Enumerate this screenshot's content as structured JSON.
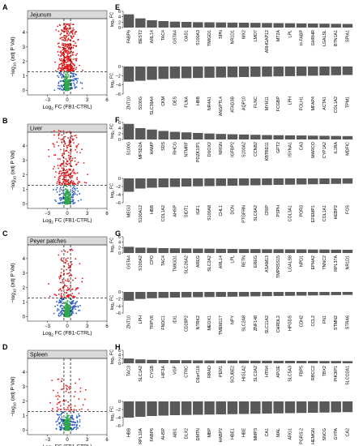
{
  "chart_data": [
    {
      "panel": "A",
      "type": "scatter",
      "title": "Jejunum",
      "xlabel": "Log2 FC (FB1-CTRL)",
      "ylabel": "−log10 (adj P Val)",
      "xlim": [
        -6,
        6
      ],
      "ylim": [
        -0.3,
        5.5
      ],
      "xticks": [
        -3,
        0,
        3,
        6
      ],
      "yticks": [
        0,
        1,
        2,
        3,
        4,
        5
      ],
      "vlines": [
        -0.5,
        0.5
      ],
      "hline": 1.3,
      "colors": {
        "up": "#e41a1c",
        "ns": "#2fa84f",
        "fc_only": "#2b5ec7"
      },
      "sig_spread": 0.55,
      "max_y": 4.6,
      "n_points": {
        "sig": 380,
        "ns": 260,
        "fc": 80
      }
    },
    {
      "panel": "B",
      "type": "scatter",
      "title": "Liver",
      "xlabel": "Log2 FC (FB1-CTRL)",
      "ylabel": "−log10 (adj P Val)",
      "xlim": [
        -6,
        6
      ],
      "ylim": [
        -0.3,
        5.5
      ],
      "xticks": [
        -3,
        0,
        3,
        6
      ],
      "yticks": [
        0,
        1,
        2,
        3,
        4,
        5
      ],
      "vlines": [
        -0.5,
        0.5
      ],
      "hline": 1.3,
      "colors": {
        "up": "#e41a1c",
        "ns": "#2fa84f",
        "fc_only": "#2b5ec7"
      },
      "sig_spread": 0.8,
      "max_y": 5.1,
      "n_points": {
        "sig": 260,
        "ns": 240,
        "fc": 70
      }
    },
    {
      "panel": "C",
      "type": "scatter",
      "title": "Peyer patches",
      "xlabel": "Log2 FC (FB1-CTRL)",
      "ylabel": "−log10 (adj P Val)",
      "xlim": [
        -6,
        6
      ],
      "ylim": [
        -0.3,
        5.5
      ],
      "xticks": [
        -3,
        0,
        3,
        6
      ],
      "yticks": [
        0,
        1,
        2,
        3,
        4,
        5
      ],
      "vlines": [
        -0.5,
        0.5
      ],
      "hline": 1.3,
      "colors": {
        "up": "#e41a1c",
        "ns": "#2fa84f",
        "fc_only": "#2b5ec7"
      },
      "sig_spread": 0.75,
      "max_y": 4.7,
      "n_points": {
        "sig": 120,
        "ns": 300,
        "fc": 90
      }
    },
    {
      "panel": "D",
      "type": "scatter",
      "title": "Spleen",
      "xlabel": "Log2 FC (FB1-CTRL)",
      "ylabel": "−log10 (adj P Val)",
      "xlim": [
        -6,
        6
      ],
      "ylim": [
        -0.3,
        5.5
      ],
      "xticks": [
        -3,
        0,
        3,
        6
      ],
      "yticks": [
        0,
        1,
        2,
        3,
        4,
        5
      ],
      "vlines": [
        -0.5,
        0.5
      ],
      "hline": 1.3,
      "colors": {
        "up": "#e41a1c",
        "ns": "#2fa84f",
        "fc_only": "#2b5ec7"
      },
      "sig_spread": 0.9,
      "max_y": 3.6,
      "n_points": {
        "sig": 70,
        "ns": 300,
        "fc": 90
      }
    },
    {
      "panel": "E",
      "type": "bar",
      "ylabel": "log2 FC",
      "up": {
        "categories": [
          "FABP6",
          "BEST2",
          "ARL14",
          "TAC4",
          "GSTA4",
          "OAS1",
          "S100A3",
          "TMIGD1",
          "SPN",
          "NR1D1",
          "MX2",
          "LMO7",
          "ARHGAP12",
          "MT2A",
          "LPL",
          "H-FABP",
          "GHRHR",
          "LGALSL",
          "BTN1A1",
          "SPIA1"
        ],
        "values": [
          4.9,
          3.4,
          2.7,
          2.4,
          2.2,
          2.1,
          2.0,
          1.95,
          1.9,
          1.85,
          1.8,
          1.75,
          1.7,
          1.65,
          1.6,
          1.55,
          1.5,
          1.45,
          1.4,
          1.35
        ],
        "ylim": [
          0,
          6
        ],
        "yticks": [
          0,
          2,
          4,
          6
        ]
      },
      "down": {
        "categories": [
          "ZNT10",
          "S100G",
          "SLC39A4",
          "CKM",
          "DES",
          "FLNA",
          "HBB",
          "NR4A1",
          "ANGPTL4",
          "ATAD3B",
          "AQP10",
          "FLNC",
          "MYH11",
          "FCGBP",
          "LPH",
          "FOLH1",
          "MFAP4",
          "ACTA1",
          "COL1A2",
          "TPM1"
        ],
        "values": [
          -3.3,
          -3.1,
          -2.9,
          -2.7,
          -2.6,
          -2.55,
          -2.5,
          -2.45,
          -2.4,
          -2.35,
          -2.3,
          -2.25,
          -2.2,
          -2.15,
          -2.1,
          -2.05,
          -2.0,
          -1.95,
          -1.9,
          -1.85
        ],
        "ylim": [
          -6,
          0
        ],
        "yticks": [
          0,
          -2,
          -4,
          -6
        ]
      }
    },
    {
      "panel": "F",
      "type": "bar",
      "ylabel": "log2 FC",
      "up": {
        "categories": [
          "S100G",
          "MFSD2A",
          "HAMP",
          "SDS",
          "RHCG",
          "NTMRF",
          "PDZK1IP1",
          "DUOX2",
          "NRGN",
          "IGFBP2",
          "S100A2",
          "CCNB2",
          "KBTBD11",
          "GPT2",
          "ISYNA1",
          "CA3",
          "MARCO",
          "CYP1A2",
          "IL1RA",
          "MDFIC"
        ],
        "values": [
          5.5,
          4.0,
          3.5,
          3.0,
          2.7,
          2.5,
          2.3,
          2.1,
          1.95,
          1.85,
          1.75,
          1.65,
          1.55,
          1.5,
          1.45,
          1.4,
          1.35,
          1.3,
          1.25,
          1.2
        ],
        "ylim": [
          0,
          6
        ],
        "yticks": [
          0,
          2,
          4,
          6
        ]
      },
      "down": {
        "categories": [
          "MEG3",
          "S100A12",
          "HBB",
          "COL1A2",
          "AHSP",
          "SIDT1",
          "IGF1",
          "S100A8",
          "CHL1",
          "DCN",
          "PTGFRN",
          "SLC6A2",
          "CRIP",
          "PSPH",
          "COL3A1",
          "POR3",
          "EFEMP1",
          "COL1A1",
          "HEBP2",
          "FOS"
        ],
        "values": [
          -3.3,
          -2.5,
          -2.3,
          -2.2,
          -2.1,
          -2.0,
          -1.95,
          -1.9,
          -1.85,
          -1.8,
          -1.75,
          -1.7,
          -1.65,
          -1.6,
          -1.55,
          -1.5,
          -1.45,
          -1.4,
          -1.35,
          -1.3
        ],
        "ylim": [
          -6,
          0
        ],
        "yticks": [
          0,
          -2,
          -4,
          -6
        ]
      }
    },
    {
      "panel": "G",
      "type": "bar",
      "ylabel": "log2 FC",
      "up": {
        "categories": [
          "GSTA4",
          "S100A2",
          "CPO",
          "TAC4",
          "TMIGD1",
          "SLC26A2",
          "AREG",
          "SLC2A2",
          "ARL14",
          "LPL",
          "RETN",
          "EREG",
          "ASAM13",
          "TMPRSS15",
          "LGALS8",
          "NPD1",
          "EPHA2",
          "TNNC2",
          "RPL37A",
          "NR1D1"
        ],
        "values": [
          2.3,
          2.0,
          1.9,
          1.8,
          1.75,
          1.7,
          1.65,
          1.6,
          1.55,
          1.5,
          1.45,
          1.45,
          1.4,
          1.4,
          1.35,
          1.35,
          1.3,
          1.3,
          1.25,
          1.2
        ],
        "ylim": [
          0,
          6
        ],
        "yticks": [
          0,
          2,
          4,
          6
        ]
      },
      "down": {
        "categories": [
          "ZNT10",
          "LPH",
          "TRPV6",
          "FNDC1",
          "IDI1",
          "CD28P2",
          "NTRK2",
          "MEOX1",
          "TMEM117",
          "NPY",
          "SLC2A8",
          "ZNF148",
          "SLC11A2",
          "CHRDL2",
          "HPGDS",
          "CDH2",
          "CCL2",
          "FN1",
          "STMN2",
          "STRA6"
        ],
        "values": [
          -2.5,
          -2.0,
          -1.8,
          -1.7,
          -1.6,
          -1.55,
          -1.5,
          -1.45,
          -1.4,
          -1.35,
          -1.3,
          -1.25,
          -1.2,
          -1.15,
          -1.1,
          -1.05,
          -1.0,
          -0.95,
          -0.9,
          -0.85
        ],
        "ylim": [
          -6,
          0
        ],
        "yticks": [
          0,
          -2,
          -4,
          -6
        ]
      }
    },
    {
      "panel": "H",
      "type": "bar",
      "ylabel": "log2 FC",
      "up": {
        "categories": [
          "TAC3",
          "SLC1A2",
          "CYGB",
          "HIF3A",
          "VGF",
          "CTRC",
          "C6orf118",
          "RRAD",
          "PER1",
          "SCUBE2",
          "HIGLA2",
          "SLC2A2",
          "HTR4",
          "APOE",
          "SLC5A3",
          "FBP5",
          "RBCC2",
          "TBX2",
          "PIK3IP1",
          "SLCO2A1"
        ],
        "values": [
          2.2,
          1.8,
          1.6,
          1.5,
          1.45,
          1.4,
          1.35,
          1.3,
          1.3,
          1.25,
          1.25,
          1.2,
          1.2,
          1.15,
          1.15,
          1.1,
          1.1,
          1.05,
          1.05,
          1.0
        ],
        "ylim": [
          0,
          6
        ],
        "yticks": [
          0,
          2,
          4,
          6
        ]
      },
      "down": {
        "categories": [
          "HBB",
          "RPL10A",
          "FABP6",
          "AHSP",
          "ABI1",
          "DLX2",
          "DMTN",
          "MBP",
          "HABP2",
          "HBE1",
          "HBE",
          "MMP3",
          "CA1",
          "MAL",
          "ARG1",
          "PGRS-2",
          "HEMGN",
          "SNCG",
          "GYPA",
          "CA2"
        ],
        "values": [
          -4.0,
          -3.8,
          -3.6,
          -3.5,
          -3.4,
          -3.35,
          -3.3,
          -3.25,
          -3.2,
          -3.15,
          -3.1,
          -3.05,
          -3.0,
          -2.95,
          -2.9,
          -2.85,
          -2.8,
          -2.75,
          -2.7,
          -2.65
        ],
        "ylim": [
          -6,
          0
        ],
        "yticks": [
          0,
          -2,
          -4,
          -6
        ]
      }
    }
  ]
}
